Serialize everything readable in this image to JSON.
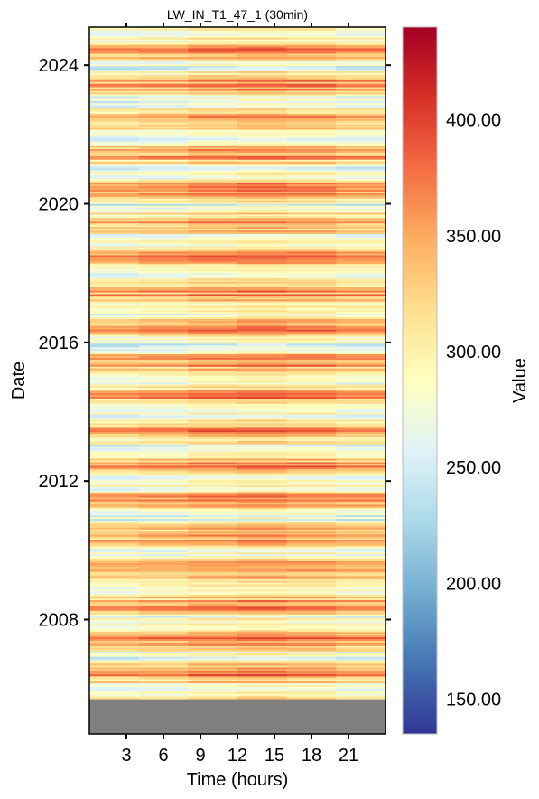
{
  "chart_data": {
    "type": "heatmap",
    "title": "LW_IN_T1_47_1 (30min)",
    "xlabel": "Time (hours)",
    "ylabel": "Date",
    "colorbar_label": "Value",
    "x_ticks": [
      3,
      6,
      9,
      12,
      15,
      18,
      21
    ],
    "x_tick_labels": [
      "3",
      "6",
      "9",
      "12",
      "15",
      "18",
      "21"
    ],
    "xlim": [
      0,
      24
    ],
    "y_ticks": [
      2008,
      2012,
      2016,
      2020,
      2024
    ],
    "y_tick_labels": [
      "2008",
      "2012",
      "2016",
      "2020",
      "2024"
    ],
    "ylim": [
      2004.7,
      2025.1
    ],
    "data_start_year": 5.7,
    "colorbar_ticks": [
      150,
      200,
      250,
      300,
      350,
      400
    ],
    "colorbar_tick_labels": [
      "150.00",
      "200.00",
      "250.00",
      "300.00",
      "350.00",
      "400.00"
    ],
    "color_range": [
      135,
      440
    ],
    "colormap": [
      "#313695",
      "#4575b4",
      "#74add1",
      "#abd9e9",
      "#e0f3f8",
      "#ffffbf",
      "#fee090",
      "#fdae61",
      "#f46d43",
      "#d73027",
      "#a50026"
    ],
    "missing_color": "#808080",
    "grid": false
  }
}
